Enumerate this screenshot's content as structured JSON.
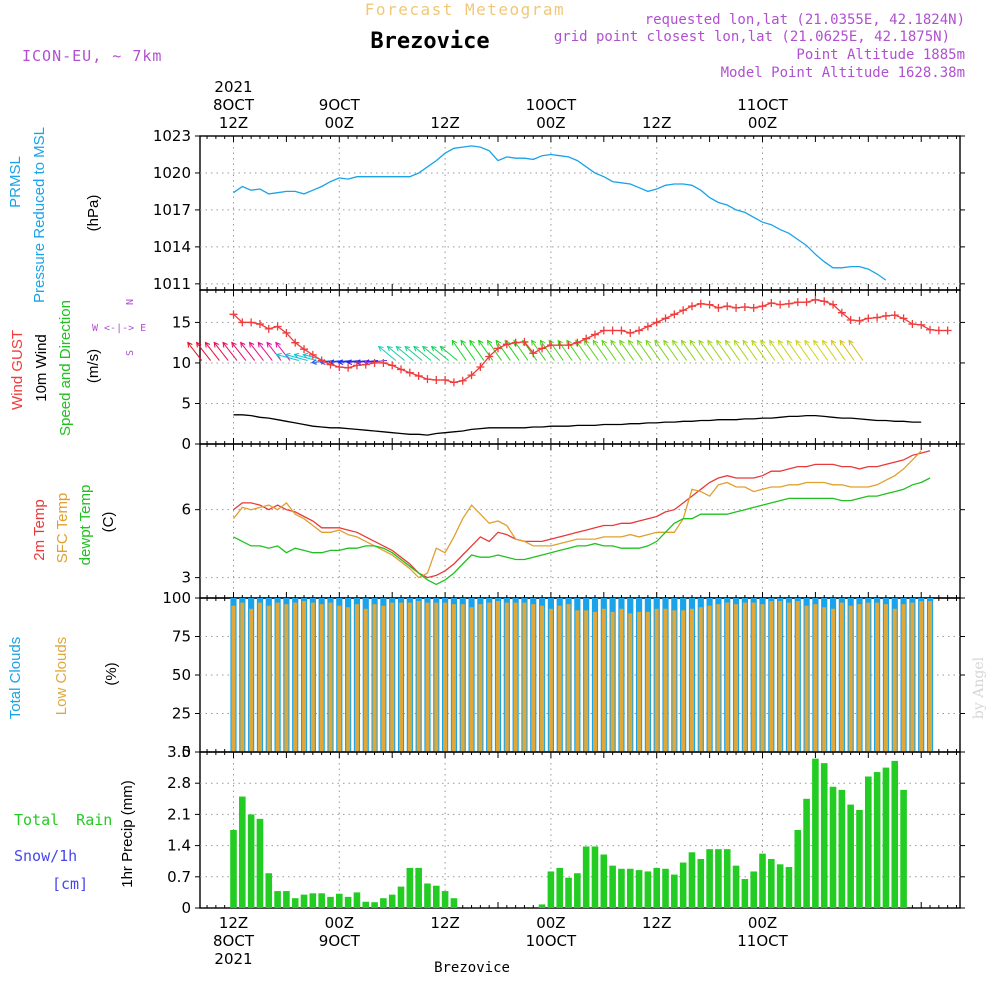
{
  "header": {
    "chart_title": "Forecast Meteogram",
    "location": "Brezovice",
    "model": "ICON-EU, ~ 7km",
    "requested": "requested lon,lat (21.0355E, 42.1824N)",
    "grid_point": "grid point closest lon,lat (21.0625E, 42.1875N)",
    "point_altitude": "Point Altitude 1885m",
    "model_altitude": "Model Point Altitude 1628.38m"
  },
  "footer": {
    "location": "Brezovice",
    "credit": "by Angel"
  },
  "time_axis": {
    "top": [
      {
        "h": 12,
        "lines": [
          "2021",
          "8OCT",
          "12Z"
        ]
      },
      {
        "h": 24,
        "lines": [
          "9OCT",
          "00Z"
        ]
      },
      {
        "h": 36,
        "lines": [
          "12Z"
        ]
      },
      {
        "h": 48,
        "lines": [
          "10OCT",
          "00Z"
        ]
      },
      {
        "h": 60,
        "lines": [
          "12Z"
        ]
      },
      {
        "h": 72,
        "lines": [
          "11OCT",
          "00Z"
        ]
      }
    ],
    "bottom": [
      {
        "h": 12,
        "lines": [
          "12Z",
          "8OCT",
          "2021"
        ]
      },
      {
        "h": 24,
        "lines": [
          "00Z",
          "9OCT"
        ]
      },
      {
        "h": 36,
        "lines": [
          "12Z"
        ]
      },
      {
        "h": 48,
        "lines": [
          "00Z",
          "10OCT"
        ]
      },
      {
        "h": 60,
        "lines": [
          "12Z"
        ]
      },
      {
        "h": 72,
        "lines": [
          "00Z",
          "11OCT"
        ]
      }
    ]
  },
  "colors": {
    "pressure": "#1aa3e8",
    "gust": "#f03c3c",
    "wind": "#000000",
    "temp2m": "#e83a3a",
    "sfc": "#e0a030",
    "dewpt": "#20c020",
    "total_clouds": "#1aa3e8",
    "low_clouds": "#e0a838",
    "rain": "#22cc22",
    "snow": "#4646f0",
    "title": "#f0c878",
    "header_info": "#b050d0",
    "dir_label": "#b050d0"
  },
  "chart_data": [
    {
      "type": "line",
      "panel": "pressure",
      "ylabel": [
        "PRMSL",
        "Pressure Reduced to MSL",
        "(hPa)"
      ],
      "ylim": [
        1010.5,
        1023
      ],
      "yticks": [
        1011,
        1014,
        1017,
        1020,
        1023
      ],
      "x_start": 12,
      "x_step": 1,
      "series": [
        {
          "name": "PRMSL",
          "values": [
            1018.4,
            1018.9,
            1018.6,
            1018.7,
            1018.3,
            1018.4,
            1018.5,
            1018.5,
            1018.3,
            1018.6,
            1018.9,
            1019.3,
            1019.6,
            1019.5,
            1019.7,
            1019.7,
            1019.7,
            1019.7,
            1019.7,
            1019.7,
            1019.7,
            1020.0,
            1020.5,
            1021.0,
            1021.6,
            1022.0,
            1022.1,
            1022.2,
            1022.1,
            1021.8,
            1021.0,
            1021.3,
            1021.2,
            1021.2,
            1021.1,
            1021.4,
            1021.5,
            1021.4,
            1021.3,
            1021.0,
            1020.5,
            1020.0,
            1019.7,
            1019.3,
            1019.2,
            1019.1,
            1018.8,
            1018.5,
            1018.7,
            1019.0,
            1019.1,
            1019.1,
            1019.0,
            1018.6,
            1018.0,
            1017.6,
            1017.4,
            1017.0,
            1016.8,
            1016.4,
            1016.0,
            1015.8,
            1015.4,
            1015.1,
            1014.6,
            1014.1,
            1013.4,
            1012.8,
            1012.3,
            1012.3,
            1012.4,
            1012.4,
            1012.2,
            1011.8,
            1011.3
          ]
        }
      ]
    },
    {
      "type": "line",
      "panel": "wind",
      "ylabel": [
        "Wind GUST",
        "10m Wind",
        "Speed and Direction",
        "(m/s)"
      ],
      "direction_labels": [
        "N",
        "W <-|-> E",
        "S"
      ],
      "ylim": [
        0,
        19
      ],
      "yticks": [
        0,
        5,
        10,
        15
      ],
      "x_start": 12,
      "x_step": 1,
      "series": [
        {
          "name": "Wind GUST",
          "marker": "+",
          "values": [
            16.0,
            15.0,
            15.0,
            14.8,
            14.2,
            14.5,
            13.7,
            12.5,
            11.7,
            11.0,
            10.3,
            9.8,
            9.5,
            9.4,
            9.7,
            9.8,
            10.0,
            10.0,
            9.7,
            9.2,
            8.8,
            8.4,
            8.0,
            7.9,
            7.9,
            7.6,
            7.8,
            8.5,
            9.5,
            10.8,
            11.8,
            12.3,
            12.5,
            12.6,
            11.2,
            11.8,
            12.2,
            12.2,
            12.2,
            12.5,
            13.0,
            13.5,
            14.0,
            14.0,
            14.0,
            13.7,
            14.0,
            14.5,
            15.0,
            15.5,
            16.0,
            16.5,
            17.0,
            17.3,
            17.2,
            16.8,
            17.0,
            16.8,
            16.9,
            16.8,
            17.0,
            17.4,
            17.2,
            17.3,
            17.5,
            17.5,
            17.8,
            17.6,
            17.2,
            16.2,
            15.3,
            15.2,
            15.5,
            15.6,
            15.8,
            15.9,
            15.5,
            14.8,
            14.7,
            14.1,
            14.0,
            14.0
          ]
        },
        {
          "name": "10m Wind",
          "values": [
            3.6,
            3.6,
            3.5,
            3.3,
            3.2,
            3.0,
            2.8,
            2.6,
            2.4,
            2.2,
            2.1,
            2.0,
            2.0,
            1.9,
            1.8,
            1.7,
            1.6,
            1.5,
            1.4,
            1.3,
            1.2,
            1.2,
            1.1,
            1.3,
            1.4,
            1.5,
            1.6,
            1.8,
            1.9,
            2.0,
            2.0,
            2.0,
            2.0,
            2.0,
            2.1,
            2.1,
            2.2,
            2.2,
            2.2,
            2.3,
            2.3,
            2.3,
            2.4,
            2.4,
            2.4,
            2.5,
            2.5,
            2.6,
            2.6,
            2.7,
            2.7,
            2.8,
            2.8,
            2.9,
            2.9,
            3.0,
            3.0,
            3.0,
            3.1,
            3.1,
            3.2,
            3.2,
            3.3,
            3.4,
            3.4,
            3.5,
            3.5,
            3.4,
            3.3,
            3.2,
            3.2,
            3.1,
            3.0,
            2.9,
            2.9,
            2.8,
            2.8,
            2.7,
            2.7
          ]
        }
      ]
    },
    {
      "type": "line",
      "panel": "temperature",
      "ylabel": [
        "2m Temp",
        "SFC Temp",
        "dewpt Temp",
        "(C)"
      ],
      "ylim": [
        2.1,
        8.9
      ],
      "yticks": [
        3,
        6
      ],
      "x_start": 12,
      "x_step": 1,
      "series": [
        {
          "name": "2m Temp",
          "values": [
            6.0,
            6.3,
            6.3,
            6.2,
            6.0,
            6.2,
            6.0,
            5.9,
            5.7,
            5.5,
            5.2,
            5.2,
            5.2,
            5.1,
            5.0,
            4.8,
            4.6,
            4.4,
            4.2,
            3.9,
            3.6,
            3.2,
            3.0,
            3.1,
            3.3,
            3.6,
            4.0,
            4.4,
            4.8,
            4.6,
            5.0,
            4.9,
            4.7,
            4.6,
            4.6,
            4.6,
            4.7,
            4.8,
            4.9,
            5.0,
            5.1,
            5.2,
            5.3,
            5.3,
            5.4,
            5.4,
            5.5,
            5.6,
            5.7,
            5.9,
            6.0,
            6.3,
            6.6,
            6.9,
            7.2,
            7.4,
            7.5,
            7.4,
            7.4,
            7.4,
            7.5,
            7.7,
            7.7,
            7.8,
            7.9,
            7.9,
            8.0,
            8.0,
            8.0,
            7.9,
            7.9,
            7.8,
            7.9,
            7.9,
            8.0,
            8.1,
            8.2,
            8.4,
            8.5,
            8.6
          ]
        },
        {
          "name": "SFC Temp",
          "values": [
            5.6,
            6.1,
            6.0,
            6.1,
            6.2,
            6.0,
            6.3,
            5.8,
            5.6,
            5.3,
            5.0,
            5.0,
            5.1,
            4.9,
            4.8,
            4.6,
            4.4,
            4.2,
            4.0,
            3.7,
            3.4,
            3.0,
            3.2,
            4.3,
            4.1,
            4.8,
            5.6,
            6.2,
            5.8,
            5.4,
            5.5,
            5.3,
            4.7,
            4.6,
            4.4,
            4.4,
            4.4,
            4.5,
            4.6,
            4.7,
            4.7,
            4.7,
            4.8,
            4.8,
            4.8,
            4.9,
            4.8,
            4.9,
            5.0,
            5.0,
            5.0,
            5.6,
            6.9,
            6.8,
            6.6,
            7.1,
            7.2,
            7.0,
            7.0,
            6.8,
            6.9,
            7.0,
            7.0,
            7.1,
            7.1,
            7.2,
            7.2,
            7.2,
            7.1,
            7.1,
            7.0,
            7.0,
            7.0,
            7.1,
            7.3,
            7.5,
            7.8,
            8.2,
            8.6
          ]
        },
        {
          "name": "dewpt Temp",
          "values": [
            4.8,
            4.6,
            4.4,
            4.4,
            4.3,
            4.4,
            4.1,
            4.3,
            4.2,
            4.1,
            4.1,
            4.2,
            4.2,
            4.3,
            4.3,
            4.4,
            4.4,
            4.3,
            4.1,
            3.8,
            3.5,
            3.2,
            2.9,
            2.7,
            2.9,
            3.2,
            3.6,
            4.0,
            3.9,
            3.9,
            4.0,
            3.9,
            3.8,
            3.8,
            3.9,
            4.0,
            4.1,
            4.2,
            4.3,
            4.4,
            4.4,
            4.5,
            4.4,
            4.4,
            4.3,
            4.3,
            4.3,
            4.4,
            4.6,
            5.0,
            5.4,
            5.6,
            5.6,
            5.8,
            5.8,
            5.8,
            5.8,
            5.9,
            6.0,
            6.1,
            6.2,
            6.3,
            6.4,
            6.5,
            6.5,
            6.5,
            6.5,
            6.5,
            6.5,
            6.4,
            6.4,
            6.5,
            6.6,
            6.6,
            6.7,
            6.8,
            6.9,
            7.1,
            7.2,
            7.4
          ]
        }
      ]
    },
    {
      "type": "bar",
      "panel": "clouds",
      "ylabel": [
        "Total Clouds",
        "Low Clouds",
        "(%)"
      ],
      "ylim": [
        0,
        100
      ],
      "yticks": [
        0,
        25,
        50,
        75,
        100
      ],
      "x_start": 12,
      "x_step": 1,
      "series": [
        {
          "name": "Total Clouds",
          "values": [
            100,
            100,
            100,
            100,
            100,
            100,
            100,
            100,
            100,
            100,
            100,
            100,
            100,
            100,
            100,
            100,
            100,
            100,
            100,
            100,
            100,
            100,
            100,
            100,
            100,
            100,
            100,
            100,
            100,
            100,
            100,
            100,
            100,
            100,
            100,
            100,
            100,
            100,
            100,
            100,
            100,
            100,
            100,
            100,
            100,
            100,
            100,
            100,
            100,
            100,
            100,
            100,
            100,
            100,
            100,
            100,
            100,
            100,
            100,
            100,
            100,
            100,
            100,
            100,
            100,
            100,
            100,
            100,
            100,
            100,
            100,
            100,
            100,
            100,
            100,
            100,
            100,
            100,
            100,
            100
          ]
        },
        {
          "name": "Low Clouds",
          "values": [
            95,
            97,
            93,
            97,
            95,
            97,
            96,
            97,
            98,
            97,
            96,
            97,
            95,
            94,
            96,
            93,
            96,
            95,
            97,
            97,
            97,
            98,
            97,
            97,
            97,
            96,
            96,
            94,
            96,
            97,
            98,
            97,
            97,
            97,
            96,
            95,
            93,
            95,
            96,
            92,
            92,
            91,
            93,
            91,
            93,
            90,
            91,
            91,
            93,
            93,
            92,
            92,
            93,
            94,
            95,
            96,
            97,
            96,
            97,
            97,
            96,
            98,
            98,
            97,
            98,
            95,
            96,
            94,
            93,
            97,
            95,
            96,
            97,
            97,
            96,
            93,
            96,
            97,
            98,
            98
          ]
        }
      ]
    },
    {
      "type": "bar",
      "panel": "precip",
      "ylabel": [
        "1hr Precip (mm)"
      ],
      "side_labels": [
        "Total Rain",
        "Snow/1h",
        "[cm]"
      ],
      "ylim": [
        0,
        3.5
      ],
      "yticks": [
        "0",
        "0.7",
        "1.4",
        "2.1",
        "2.8",
        "3.5"
      ],
      "x_start": 12,
      "x_step": 1,
      "series": [
        {
          "name": "Total Rain",
          "values": [
            1.75,
            2.5,
            2.1,
            2.0,
            0.78,
            0.38,
            0.38,
            0.22,
            0.3,
            0.33,
            0.33,
            0.25,
            0.32,
            0.25,
            0.35,
            0.14,
            0.13,
            0.22,
            0.3,
            0.48,
            0.9,
            0.9,
            0.55,
            0.5,
            0.38,
            0.22,
            0.0,
            0.0,
            0.0,
            0.0,
            0.0,
            0.0,
            0.0,
            0.0,
            0.0,
            0.08,
            0.82,
            0.9,
            0.68,
            0.78,
            1.38,
            1.38,
            1.2,
            0.95,
            0.88,
            0.88,
            0.85,
            0.82,
            0.9,
            0.88,
            0.75,
            1.02,
            1.25,
            1.1,
            1.32,
            1.32,
            1.32,
            0.95,
            0.65,
            0.82,
            1.22,
            1.1,
            0.98,
            0.92,
            1.75,
            2.45,
            3.35,
            3.25,
            2.72,
            2.65,
            2.32,
            2.2,
            2.95,
            3.05,
            3.15,
            3.3,
            2.65
          ]
        },
        {
          "name": "Snow/1h",
          "values": [
            0,
            0,
            0,
            0,
            0,
            0,
            0,
            0,
            0,
            0,
            0,
            0,
            0,
            0,
            0,
            0,
            0,
            0,
            0,
            0,
            0,
            0,
            0,
            0,
            0,
            0,
            0,
            0,
            0,
            0,
            0,
            0,
            0,
            0,
            0,
            0,
            0,
            0,
            0,
            0,
            0,
            0,
            0,
            0,
            0,
            0,
            0,
            0,
            0,
            0,
            0,
            0,
            0,
            0,
            0,
            0,
            0,
            0,
            0,
            0,
            0,
            0,
            0,
            0,
            0,
            0,
            0,
            0,
            0,
            0,
            0,
            0,
            0,
            0,
            0,
            0,
            0
          ]
        }
      ]
    }
  ]
}
